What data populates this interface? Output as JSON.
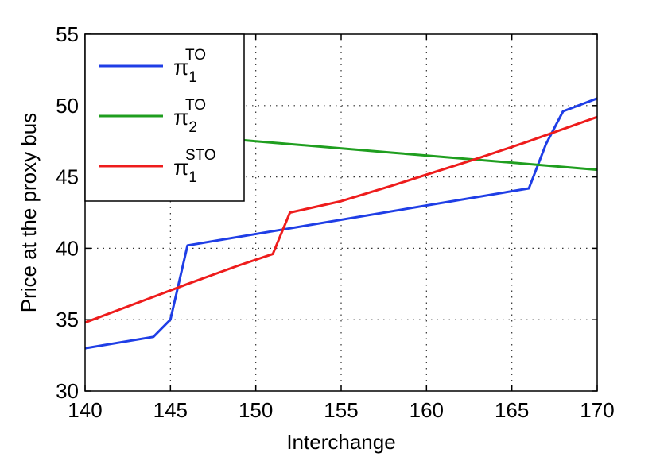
{
  "chart_data": {
    "type": "line",
    "xlabel": "Interchange",
    "ylabel": "Price at the proxy bus",
    "xlim": [
      140,
      170
    ],
    "ylim": [
      30,
      55
    ],
    "xticks": [
      140,
      145,
      150,
      155,
      160,
      165,
      170
    ],
    "yticks": [
      30,
      35,
      40,
      45,
      50,
      55
    ],
    "grid": true,
    "legend_position": "top-left",
    "series": [
      {
        "name": "π1TO",
        "legend": {
          "base": "π",
          "sub": "1",
          "sup": "TO"
        },
        "color": "#1f3ee6",
        "x": [
          140,
          144,
          145,
          146,
          166,
          167,
          168,
          170
        ],
        "y": [
          33.0,
          33.8,
          35.0,
          40.2,
          44.2,
          47.3,
          49.6,
          50.5
        ]
      },
      {
        "name": "π2TO",
        "legend": {
          "base": "π",
          "sub": "2",
          "sup": "TO"
        },
        "color": "#1f9e1f",
        "x": [
          140,
          145,
          149,
          150,
          158,
          170
        ],
        "y": [
          48.5,
          48.0,
          47.6,
          47.5,
          46.7,
          45.5
        ]
      },
      {
        "name": "π1STO",
        "legend": {
          "base": "π",
          "sub": "1",
          "sup": "STO"
        },
        "color": "#ee1c1c",
        "x": [
          140,
          142,
          144,
          146,
          149,
          151,
          152,
          155,
          158,
          163,
          166,
          170
        ],
        "y": [
          34.8,
          35.7,
          36.6,
          37.5,
          38.8,
          39.6,
          42.5,
          43.3,
          44.4,
          46.3,
          47.5,
          49.2
        ]
      }
    ]
  }
}
